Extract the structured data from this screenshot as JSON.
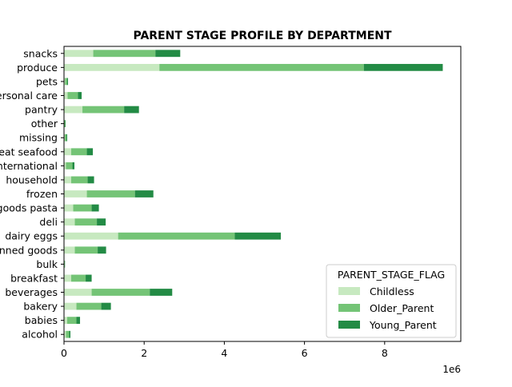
{
  "chart_data": {
    "type": "bar",
    "orientation": "horizontal",
    "stacked": true,
    "title": "PARENT STAGE PROFILE BY DEPARTMENT",
    "xlabel": "",
    "ylabel": "",
    "x_scale_note": "1e6",
    "xlim": [
      0,
      9.9
    ],
    "xticks": [
      0,
      2,
      4,
      6,
      8
    ],
    "grid": false,
    "categories": [
      "alcohol",
      "babies",
      "bakery",
      "beverages",
      "breakfast",
      "bulk",
      "canned goods",
      "dairy eggs",
      "deli",
      "dry goods pasta",
      "frozen",
      "household",
      "international",
      "meat seafood",
      "missing",
      "other",
      "pantry",
      "personal care",
      "pets",
      "produce",
      "snacks"
    ],
    "series": [
      {
        "name": "Childless",
        "color": "#c7e9c0",
        "values": [
          0.05,
          0.08,
          0.31,
          0.69,
          0.18,
          0.01,
          0.27,
          1.35,
          0.27,
          0.23,
          0.57,
          0.18,
          0.05,
          0.18,
          0.02,
          0.01,
          0.46,
          0.09,
          0.03,
          2.38,
          0.73
        ]
      },
      {
        "name": "Older_Parent",
        "color": "#74c476",
        "values": [
          0.08,
          0.23,
          0.62,
          1.45,
          0.36,
          0.01,
          0.57,
          2.91,
          0.55,
          0.46,
          1.2,
          0.41,
          0.16,
          0.39,
          0.04,
          0.02,
          1.04,
          0.26,
          0.05,
          5.1,
          1.55
        ]
      },
      {
        "name": "Young_Parent",
        "color": "#238b45",
        "values": [
          0.03,
          0.09,
          0.24,
          0.56,
          0.15,
          0.005,
          0.21,
          1.15,
          0.22,
          0.18,
          0.46,
          0.16,
          0.05,
          0.15,
          0.02,
          0.01,
          0.37,
          0.09,
          0.02,
          1.97,
          0.62
        ]
      }
    ],
    "legend": {
      "title": "PARENT_STAGE_FLAG",
      "placement": "lower-right"
    }
  }
}
